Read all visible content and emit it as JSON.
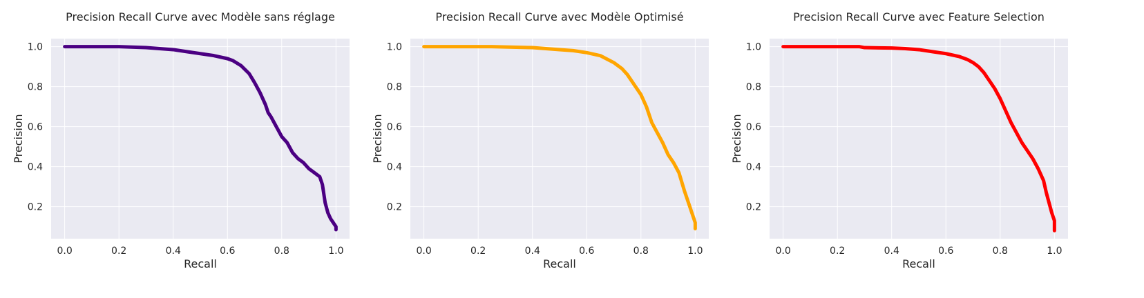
{
  "chart_data": [
    {
      "type": "line",
      "title": "Precision Recall Curve avec Modèle sans réglage",
      "xlabel": "Recall",
      "ylabel": "Precision",
      "xlim": [
        -0.05,
        1.05
      ],
      "ylim": [
        0.04,
        1.04
      ],
      "xticks": [
        "0.0",
        "0.2",
        "0.4",
        "0.6",
        "0.8",
        "1.0"
      ],
      "yticks": [
        "0.2",
        "0.4",
        "0.6",
        "0.8",
        "1.0"
      ],
      "grid": true,
      "color": "#4b0082",
      "series": [
        {
          "x": [
            0.0,
            0.05,
            0.1,
            0.2,
            0.3,
            0.35,
            0.4,
            0.45,
            0.5,
            0.55,
            0.6,
            0.62,
            0.65,
            0.68,
            0.7,
            0.72,
            0.74,
            0.75,
            0.76,
            0.78,
            0.8,
            0.82,
            0.84,
            0.86,
            0.88,
            0.9,
            0.92,
            0.94,
            0.95,
            0.96,
            0.97,
            0.98,
            0.99,
            1.0,
            1.0
          ],
          "y": [
            1.0,
            1.0,
            1.0,
            1.0,
            0.995,
            0.99,
            0.985,
            0.975,
            0.965,
            0.955,
            0.94,
            0.93,
            0.905,
            0.865,
            0.82,
            0.77,
            0.71,
            0.67,
            0.65,
            0.6,
            0.55,
            0.52,
            0.47,
            0.44,
            0.42,
            0.39,
            0.37,
            0.35,
            0.31,
            0.22,
            0.17,
            0.14,
            0.12,
            0.1,
            0.085
          ]
        }
      ]
    },
    {
      "type": "line",
      "title": "Precision Recall Curve avec Modèle Optimisé",
      "xlabel": "Recall",
      "ylabel": "Precision",
      "xlim": [
        -0.05,
        1.05
      ],
      "ylim": [
        0.04,
        1.04
      ],
      "xticks": [
        "0.0",
        "0.2",
        "0.4",
        "0.6",
        "0.8",
        "1.0"
      ],
      "yticks": [
        "0.2",
        "0.4",
        "0.6",
        "0.8",
        "1.0"
      ],
      "grid": true,
      "color": "#ffa500",
      "series": [
        {
          "x": [
            0.0,
            0.1,
            0.2,
            0.25,
            0.3,
            0.4,
            0.45,
            0.5,
            0.55,
            0.6,
            0.65,
            0.7,
            0.73,
            0.75,
            0.78,
            0.8,
            0.82,
            0.84,
            0.86,
            0.88,
            0.9,
            0.92,
            0.94,
            0.96,
            0.98,
            0.99,
            1.0,
            1.0
          ],
          "y": [
            1.0,
            1.0,
            1.0,
            1.0,
            0.998,
            0.995,
            0.99,
            0.985,
            0.98,
            0.97,
            0.955,
            0.92,
            0.89,
            0.86,
            0.8,
            0.76,
            0.7,
            0.62,
            0.57,
            0.52,
            0.46,
            0.42,
            0.37,
            0.28,
            0.2,
            0.16,
            0.12,
            0.09
          ]
        }
      ]
    },
    {
      "type": "line",
      "title": "Precision Recall Curve avec Feature Selection",
      "xlabel": "Recall",
      "ylabel": "Precision",
      "xlim": [
        -0.05,
        1.05
      ],
      "ylim": [
        0.04,
        1.04
      ],
      "xticks": [
        "0.0",
        "0.2",
        "0.4",
        "0.6",
        "0.8",
        "1.0"
      ],
      "yticks": [
        "0.2",
        "0.4",
        "0.6",
        "0.8",
        "1.0"
      ],
      "grid": true,
      "color": "#ff0000",
      "series": [
        {
          "x": [
            0.0,
            0.1,
            0.2,
            0.28,
            0.3,
            0.4,
            0.45,
            0.5,
            0.55,
            0.6,
            0.65,
            0.68,
            0.7,
            0.72,
            0.74,
            0.76,
            0.78,
            0.8,
            0.82,
            0.84,
            0.86,
            0.88,
            0.9,
            0.92,
            0.94,
            0.96,
            0.97,
            0.98,
            0.99,
            1.0,
            1.0
          ],
          "y": [
            1.0,
            1.0,
            1.0,
            1.0,
            0.995,
            0.993,
            0.99,
            0.985,
            0.975,
            0.965,
            0.95,
            0.935,
            0.92,
            0.9,
            0.87,
            0.83,
            0.79,
            0.74,
            0.68,
            0.62,
            0.57,
            0.52,
            0.48,
            0.44,
            0.39,
            0.33,
            0.27,
            0.22,
            0.17,
            0.13,
            0.08
          ]
        }
      ]
    }
  ]
}
